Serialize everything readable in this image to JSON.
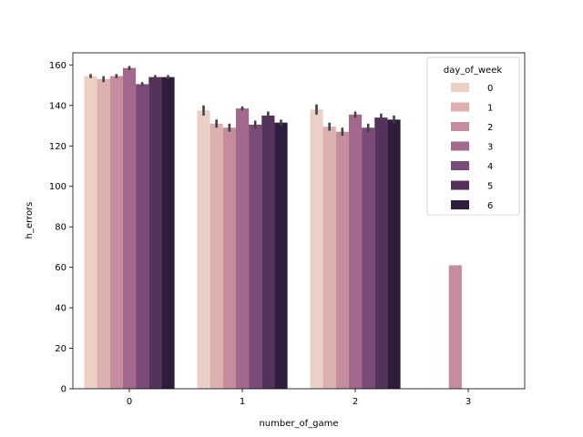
{
  "chart_data": {
    "type": "bar",
    "xlabel": "number_of_game",
    "ylabel": "h_errors",
    "categories": [
      "0",
      "1",
      "2",
      "3"
    ],
    "ylim": [
      0,
      166
    ],
    "yticks": [
      0,
      20,
      40,
      60,
      80,
      100,
      120,
      140,
      160
    ],
    "grid": false,
    "legend": {
      "title": "day_of_week",
      "placement": "top-right"
    },
    "series": [
      {
        "name": "0",
        "color": "#ebd0c8",
        "values": [
          154.5,
          137.5,
          138,
          null
        ],
        "err": [
          1,
          2.5,
          2.5,
          null
        ]
      },
      {
        "name": "1",
        "color": "#dcb0ae",
        "values": [
          153,
          131,
          129.5,
          null
        ],
        "err": [
          1.5,
          2,
          2,
          null
        ]
      },
      {
        "name": "2",
        "color": "#c48c9d",
        "values": [
          154.5,
          129,
          127,
          61
        ],
        "err": [
          1,
          2,
          2,
          0
        ]
      },
      {
        "name": "3",
        "color": "#a3698d",
        "values": [
          158.5,
          138.5,
          135.5,
          null
        ],
        "err": [
          1,
          1,
          1.5,
          null
        ]
      },
      {
        "name": "4",
        "color": "#7a4a78",
        "values": [
          150.5,
          130.5,
          129,
          null
        ],
        "err": [
          1,
          2,
          2,
          null
        ]
      },
      {
        "name": "5",
        "color": "#54325a",
        "values": [
          154,
          135,
          134,
          null
        ],
        "err": [
          1,
          2,
          2,
          null
        ]
      },
      {
        "name": "6",
        "color": "#2e1e3b",
        "values": [
          154,
          131.5,
          133,
          null
        ],
        "err": [
          1,
          1.5,
          2,
          null
        ]
      }
    ]
  }
}
